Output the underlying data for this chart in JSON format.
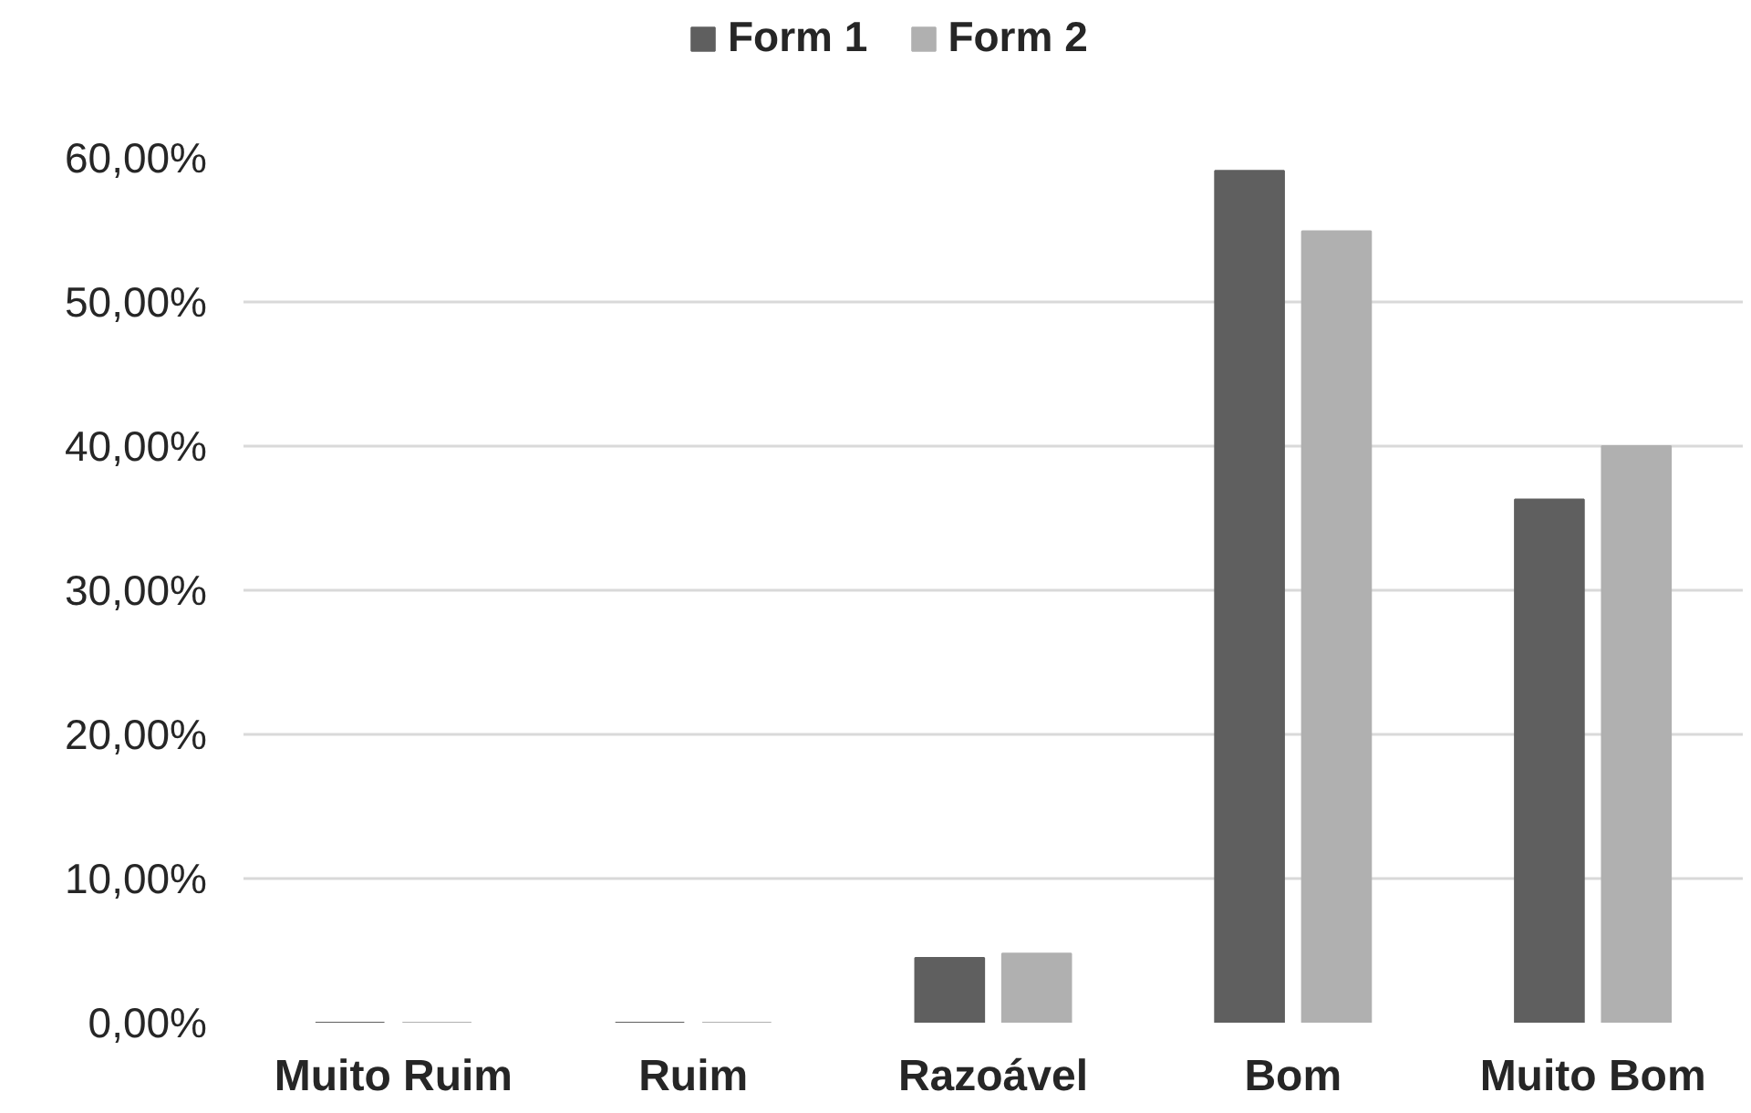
{
  "chart_data": {
    "type": "bar",
    "categories": [
      "Muito Ruim",
      "Ruim",
      "Razoável",
      "Bom",
      "Muito Bom"
    ],
    "series": [
      {
        "name": "Form 1",
        "color": "#5f5f5f",
        "values": [
          0,
          0,
          4.5,
          59.1,
          36.3
        ]
      },
      {
        "name": "Form 2",
        "color": "#b0b0b0",
        "values": [
          0,
          0,
          4.8,
          54.9,
          40
        ]
      }
    ],
    "ylim": [
      0,
      60
    ],
    "yticks": [
      {
        "value": 0,
        "label": "0,00%"
      },
      {
        "value": 10,
        "label": "10,00%"
      },
      {
        "value": 20,
        "label": "20,00%"
      },
      {
        "value": 30,
        "label": "30,00%"
      },
      {
        "value": 40,
        "label": "40,00%"
      },
      {
        "value": 50,
        "label": "50,00%"
      },
      {
        "value": 60,
        "label": "60,00%"
      }
    ],
    "grid": "y",
    "legend": "top"
  }
}
